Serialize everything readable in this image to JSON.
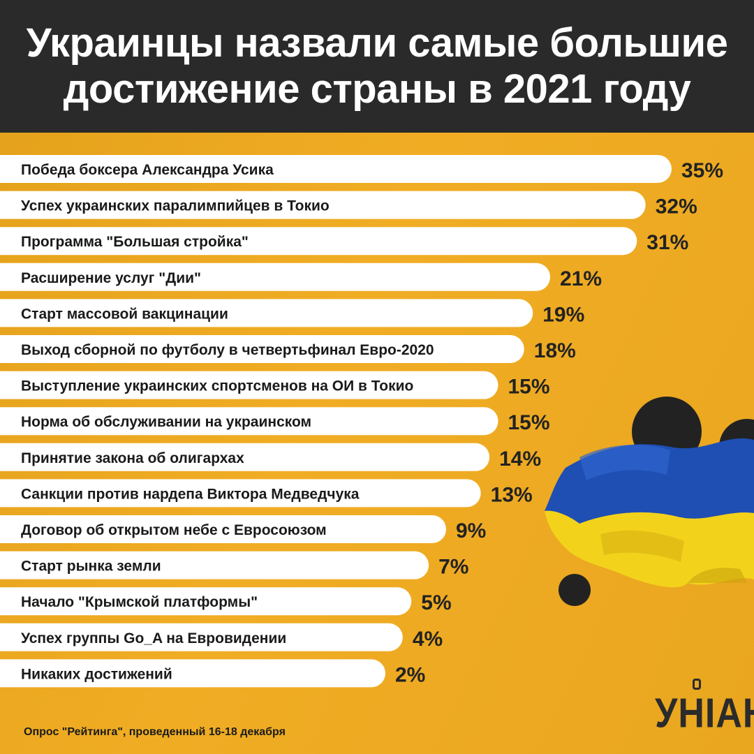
{
  "header": {
    "title_line1": "Украинцы назвали самые большие",
    "title_line2": "достижение страны в 2021 году"
  },
  "footer": {
    "source": "Опрос \"Рейтинга\", проведенный 16-18 декабря"
  },
  "logo": {
    "text": "УНІАН",
    "icon": "logo-mark-icon"
  },
  "colors": {
    "background": "#e8a51e",
    "header": "#2a2a2a",
    "bar": "#ffffff",
    "text": "#1a1a1a",
    "flag_blue": "#1f4fb3",
    "flag_yellow": "#f3d21c"
  },
  "chart_data": {
    "type": "bar",
    "orientation": "horizontal",
    "title": "Украинцы назвали самые большие достижение страны в 2021 году",
    "categories": [
      "Победа боксера Александра Усика",
      "Успех украинских паралимпийцев в Токио",
      "Программа \"Большая стройка\"",
      "Расширение услуг \"Дии\"",
      "Старт массовой вакцинации",
      "Выход сборной по футболу в четвертьфинал Евро-2020",
      "Выступление украинских спортсменов на ОИ в Токио",
      "Норма об обслуживании на украинском",
      "Принятие закона об олигархах",
      "Санкции против нардепа Виктора Медведчука",
      "Договор об открытом небе с Евросоюзом",
      "Старт рынка земли",
      "Начало \"Крымской платформы\"",
      "Успех группы Go_A на Евровидении",
      "Никаких достижений"
    ],
    "values": [
      35,
      32,
      31,
      21,
      19,
      18,
      15,
      15,
      14,
      13,
      9,
      7,
      5,
      4,
      2
    ],
    "value_labels": [
      "35%",
      "32%",
      "31%",
      "21%",
      "19%",
      "18%",
      "15%",
      "15%",
      "14%",
      "13%",
      "9%",
      "7%",
      "5%",
      "4%",
      "2%"
    ],
    "unit": "%"
  }
}
